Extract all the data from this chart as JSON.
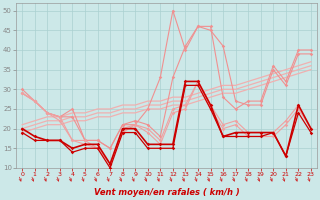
{
  "xlabel": "Vent moyen/en rafales ( km/h )",
  "x": [
    0,
    1,
    2,
    3,
    4,
    5,
    6,
    7,
    8,
    9,
    10,
    11,
    12,
    13,
    14,
    15,
    16,
    17,
    18,
    19,
    20,
    21,
    22,
    23
  ],
  "rafales_high": [
    30,
    27,
    24,
    23,
    25,
    17,
    17,
    15,
    21,
    21,
    25,
    33,
    50,
    40,
    46,
    46,
    28,
    25,
    27,
    27,
    36,
    32,
    40,
    40
  ],
  "rafales_low": [
    29,
    27,
    24,
    23,
    23,
    17,
    17,
    15,
    21,
    22,
    21,
    18,
    33,
    41,
    46,
    45,
    41,
    27,
    26,
    26,
    35,
    31,
    39,
    39
  ],
  "moyen_high": [
    29,
    27,
    24,
    23,
    17,
    17,
    15,
    11,
    20,
    21,
    20,
    17,
    25,
    26,
    32,
    26,
    21,
    22,
    19,
    19,
    19,
    22,
    26,
    20
  ],
  "moyen_low": [
    29,
    27,
    24,
    22,
    17,
    16,
    15,
    11,
    19,
    21,
    19,
    16,
    24,
    25,
    32,
    25,
    20,
    21,
    18,
    18,
    18,
    21,
    25,
    20
  ],
  "trend_a": [
    19,
    20,
    21,
    21,
    22,
    22,
    23,
    23,
    24,
    24,
    25,
    25,
    26,
    26,
    27,
    28,
    29,
    29,
    30,
    31,
    32,
    33,
    34,
    35
  ],
  "trend_b": [
    20,
    21,
    22,
    22,
    23,
    23,
    24,
    24,
    25,
    25,
    26,
    26,
    27,
    27,
    28,
    29,
    30,
    30,
    31,
    32,
    33,
    34,
    35,
    36
  ],
  "trend_c": [
    21,
    22,
    23,
    23,
    24,
    24,
    25,
    25,
    26,
    26,
    27,
    27,
    28,
    28,
    29,
    30,
    31,
    31,
    32,
    33,
    34,
    35,
    36,
    37
  ],
  "dark1": [
    19,
    17,
    17,
    17,
    14,
    15,
    15,
    10,
    19,
    19,
    15,
    15,
    15,
    31,
    31,
    25,
    18,
    18,
    18,
    18,
    19,
    13,
    24,
    19
  ],
  "dark2": [
    20,
    18,
    17,
    17,
    15,
    16,
    16,
    11,
    20,
    20,
    16,
    16,
    16,
    32,
    32,
    26,
    18,
    19,
    19,
    19,
    19,
    13,
    26,
    20
  ],
  "ylim": [
    10,
    52
  ],
  "yticks": [
    10,
    15,
    20,
    25,
    30,
    35,
    40,
    45,
    50
  ],
  "bg_color": "#cce8e8",
  "grid_color": "#aad0d0",
  "color_light": "#f09090",
  "color_medium": "#e87070",
  "color_trend": "#f0b0b0",
  "color_dark": "#cc0000",
  "color_xlabel": "#cc0000",
  "color_arrows": "#cc2222"
}
